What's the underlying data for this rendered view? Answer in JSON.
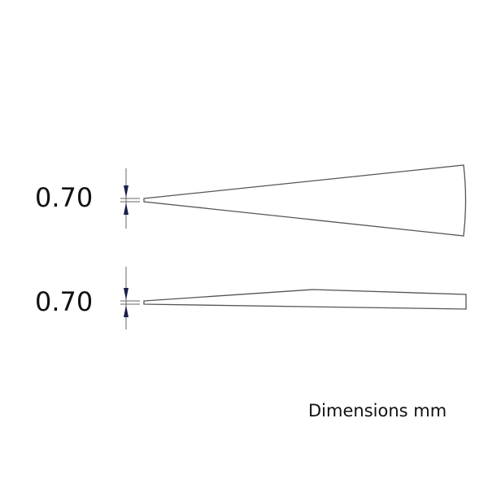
{
  "dimensions": [
    {
      "label": "0.70"
    },
    {
      "label": "0.70"
    }
  ],
  "units_note": "Dimensions mm",
  "colors": {
    "outline": "#555555",
    "arrow": "#1a1f4a",
    "text": "#111111"
  }
}
